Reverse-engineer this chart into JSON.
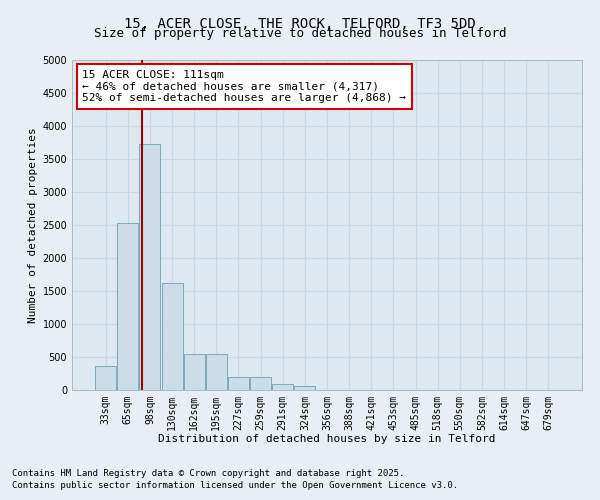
{
  "title_line1": "15, ACER CLOSE, THE ROCK, TELFORD, TF3 5DD",
  "title_line2": "Size of property relative to detached houses in Telford",
  "xlabel": "Distribution of detached houses by size in Telford",
  "ylabel": "Number of detached properties",
  "categories": [
    "33sqm",
    "65sqm",
    "98sqm",
    "130sqm",
    "162sqm",
    "195sqm",
    "227sqm",
    "259sqm",
    "291sqm",
    "324sqm",
    "356sqm",
    "388sqm",
    "421sqm",
    "453sqm",
    "485sqm",
    "518sqm",
    "550sqm",
    "582sqm",
    "614sqm",
    "647sqm",
    "679sqm"
  ],
  "values": [
    370,
    2530,
    3730,
    1620,
    550,
    550,
    200,
    190,
    95,
    60,
    0,
    0,
    0,
    0,
    0,
    0,
    0,
    0,
    0,
    0,
    0
  ],
  "bar_color": "#ccdde8",
  "bar_edge_color": "#7aaabb",
  "vline_x": 1.62,
  "vline_color": "#990000",
  "annotation_text": "15 ACER CLOSE: 111sqm\n← 46% of detached houses are smaller (4,317)\n52% of semi-detached houses are larger (4,868) →",
  "annotation_box_color": "#cc0000",
  "annotation_text_color": "#000000",
  "ylim": [
    0,
    5000
  ],
  "yticks": [
    0,
    500,
    1000,
    1500,
    2000,
    2500,
    3000,
    3500,
    4000,
    4500,
    5000
  ],
  "grid_color": "#c8d8e8",
  "bg_color": "#dde8f0",
  "fig_bg_color": "#e8eef4",
  "footer_line1": "Contains HM Land Registry data © Crown copyright and database right 2025.",
  "footer_line2": "Contains public sector information licensed under the Open Government Licence v3.0.",
  "title_fontsize": 10,
  "subtitle_fontsize": 9,
  "axis_label_fontsize": 8,
  "tick_fontsize": 7,
  "annotation_fontsize": 8,
  "footer_fontsize": 6.5
}
